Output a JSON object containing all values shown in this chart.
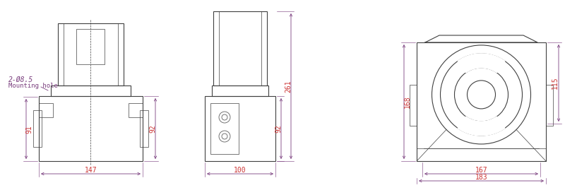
{
  "bg_color": "#ffffff",
  "line_color": "#404040",
  "dim_color": "#7B3F7F",
  "dim_text_color": "#CC3333"
}
